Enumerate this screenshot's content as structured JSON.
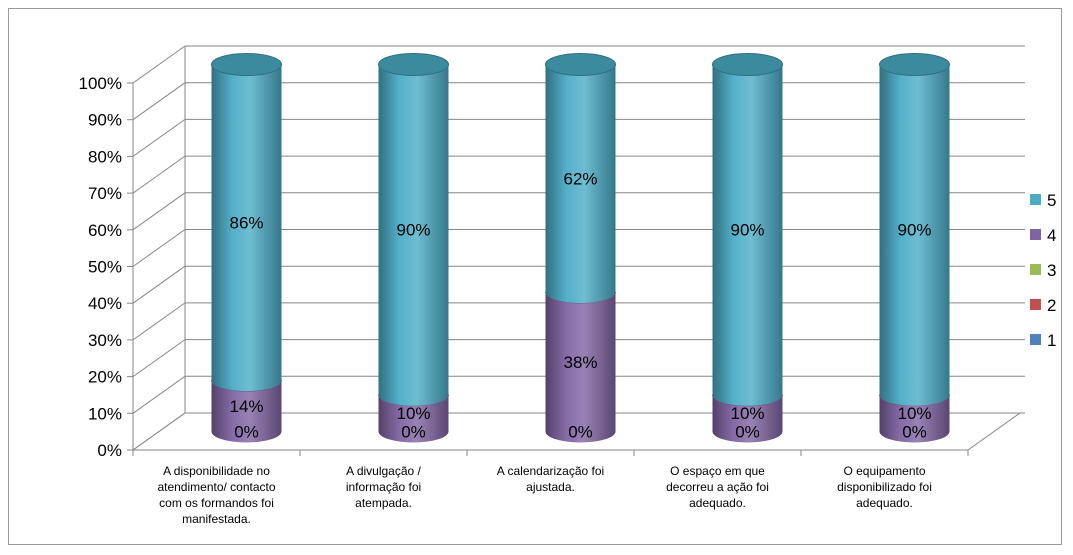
{
  "chart_data": {
    "type": "bar",
    "stacked": true,
    "percent_stacked": true,
    "style": "3d-cylinder",
    "title": "",
    "xlabel": "",
    "ylabel": "",
    "ylim": [
      0,
      100
    ],
    "yticks": [
      "0%",
      "10%",
      "20%",
      "30%",
      "40%",
      "50%",
      "60%",
      "70%",
      "80%",
      "90%",
      "100%"
    ],
    "grid": true,
    "legend_position": "right",
    "categories": [
      [
        "A disponibilidade no",
        "atendimento/ contacto",
        "com os formandos foi",
        "manifestada."
      ],
      [
        "A divulgação /",
        "informação foi",
        "atempada."
      ],
      [
        "A calendarização foi",
        "ajustada."
      ],
      [
        "O espaço em que",
        "decorreu a ação foi",
        "adequado."
      ],
      [
        "O equipamento",
        "disponibilizado foi",
        "adequado."
      ]
    ],
    "series": [
      {
        "name": "1",
        "color": "#4f81bd",
        "values": [
          0,
          0,
          0,
          0,
          0
        ],
        "labels": [
          "",
          "",
          "",
          "",
          ""
        ]
      },
      {
        "name": "2",
        "color": "#c0504d",
        "values": [
          0,
          0,
          0,
          0,
          0
        ],
        "labels": [
          "",
          "",
          "",
          "",
          ""
        ]
      },
      {
        "name": "3",
        "color": "#9bbb59",
        "values": [
          0,
          0,
          0,
          0,
          0
        ],
        "labels": [
          "0%",
          "0%",
          "0%",
          "0%",
          "0%"
        ]
      },
      {
        "name": "4",
        "color": "#8064a2",
        "values": [
          14,
          10,
          38,
          10,
          10
        ],
        "labels": [
          "14%",
          "10%",
          "38%",
          "10%",
          "10%"
        ]
      },
      {
        "name": "5",
        "color": "#4bacc6",
        "values": [
          86,
          90,
          62,
          90,
          90
        ],
        "labels": [
          "86%",
          "90%",
          "62%",
          "90%",
          "90%"
        ]
      }
    ]
  }
}
